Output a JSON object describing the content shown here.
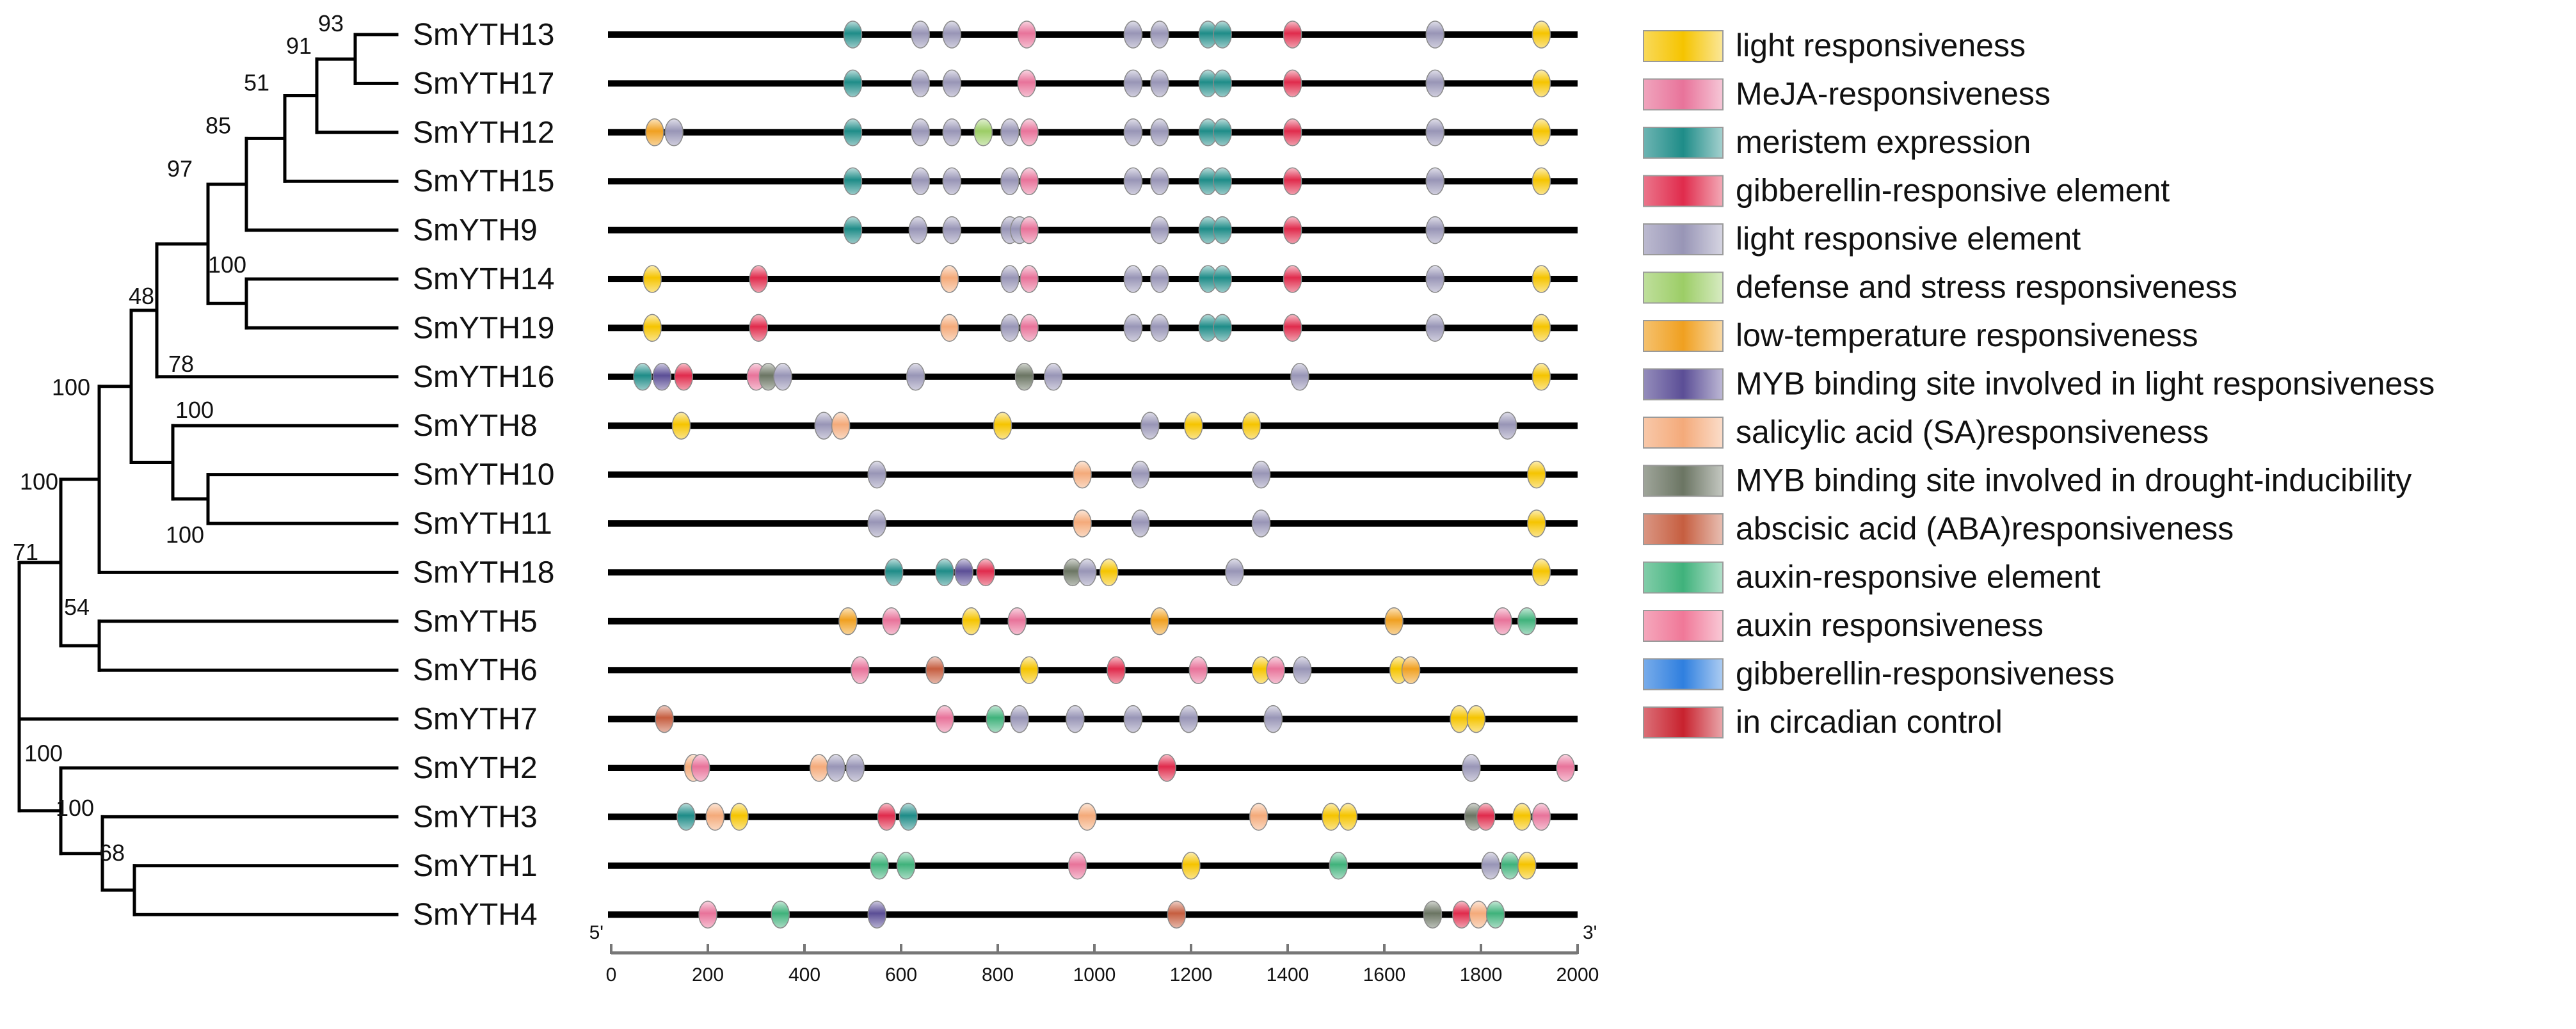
{
  "categories": {
    "light": {
      "label": "light responsiveness",
      "color": "#F5C400"
    },
    "meja": {
      "label": "MeJA-responsiveness",
      "color": "#E8739A"
    },
    "meristem": {
      "label": "meristem expression",
      "color": "#1E8C88"
    },
    "gibberellin_element": {
      "label": "gibberellin-responsive element",
      "color": "#E02B4C"
    },
    "light_element": {
      "label": "light responsive element",
      "color": "#9895B6"
    },
    "defense": {
      "label": "defense and stress responsiveness",
      "color": "#9CCD66"
    },
    "low_temp": {
      "label": "low-temperature responsiveness",
      "color": "#F0A020"
    },
    "myb_light": {
      "label": "MYB binding site involved in light responsiveness",
      "color": "#5B4E96"
    },
    "salicylic": {
      "label": "salicylic acid (SA)responsiveness",
      "color": "#F4AA7A"
    },
    "myb_drought": {
      "label": "MYB binding site involved in drought-inducibility",
      "color": "#6B7563"
    },
    "abscisic": {
      "label": "abscisic acid (ABA)responsiveness",
      "color": "#C65E40"
    },
    "auxin_element": {
      "label": "auxin-responsive element",
      "color": "#3FB27B"
    },
    "auxin": {
      "label": "auxin responsiveness",
      "color": "#F07898"
    },
    "gibberellin": {
      "label": "gibberellin-responsiveness",
      "color": "#2F7FDF"
    },
    "circadian": {
      "label": "in circadian control",
      "color": "#C8222E"
    }
  },
  "legend_order": [
    "light",
    "meja",
    "meristem",
    "gibberellin_element",
    "light_element",
    "defense",
    "low_temp",
    "myb_light",
    "salicylic",
    "myb_drought",
    "abscisic",
    "auxin_element",
    "auxin",
    "gibberellin",
    "circadian"
  ],
  "axis": {
    "min": 0,
    "max": 2000,
    "ticks": [
      "0",
      "200",
      "400",
      "600",
      "800",
      "1000",
      "1200",
      "1400",
      "1600",
      "1800",
      "2000"
    ],
    "tick_values": [
      0,
      200,
      400,
      600,
      800,
      1000,
      1200,
      1400,
      1600,
      1800,
      2000
    ],
    "start_label": "5'",
    "end_label": "3'"
  },
  "tree": {
    "leaves": [
      "SmYTH13",
      "SmYTH17",
      "SmYTH12",
      "SmYTH15",
      "SmYTH9",
      "SmYTH14",
      "SmYTH19",
      "SmYTH16",
      "SmYTH8",
      "SmYTH10",
      "SmYTH11",
      "SmYTH18",
      "SmYTH5",
      "SmYTH6",
      "SmYTH7",
      "SmYTH2",
      "SmYTH3",
      "SmYTH1",
      "SmYTH4"
    ],
    "bootstrap": [
      "93",
      "91",
      "51",
      "85",
      "97",
      "100",
      "48",
      "78",
      "100",
      "100",
      "100",
      "100",
      "71",
      "54",
      "100",
      "100",
      "68"
    ]
  },
  "genes": [
    {
      "name": "SmYTH13",
      "motifs": [
        [
          500,
          "meristem"
        ],
        [
          640,
          "light_element"
        ],
        [
          705,
          "light_element"
        ],
        [
          860,
          "meja"
        ],
        [
          1080,
          "light_element"
        ],
        [
          1135,
          "light_element"
        ],
        [
          1235,
          "meristem"
        ],
        [
          1265,
          "meristem"
        ],
        [
          1410,
          "gibberellin_element"
        ],
        [
          1705,
          "light_element"
        ],
        [
          1925,
          "light"
        ]
      ]
    },
    {
      "name": "SmYTH17",
      "motifs": [
        [
          500,
          "meristem"
        ],
        [
          640,
          "light_element"
        ],
        [
          705,
          "light_element"
        ],
        [
          860,
          "meja"
        ],
        [
          1080,
          "light_element"
        ],
        [
          1135,
          "light_element"
        ],
        [
          1235,
          "meristem"
        ],
        [
          1265,
          "meristem"
        ],
        [
          1410,
          "gibberellin_element"
        ],
        [
          1705,
          "light_element"
        ],
        [
          1925,
          "light"
        ]
      ]
    },
    {
      "name": "SmYTH12",
      "motifs": [
        [
          90,
          "low_temp"
        ],
        [
          130,
          "light_element"
        ],
        [
          500,
          "meristem"
        ],
        [
          640,
          "light_element"
        ],
        [
          705,
          "light_element"
        ],
        [
          770,
          "defense"
        ],
        [
          825,
          "light_element"
        ],
        [
          865,
          "meja"
        ],
        [
          1080,
          "light_element"
        ],
        [
          1135,
          "light_element"
        ],
        [
          1235,
          "meristem"
        ],
        [
          1265,
          "meristem"
        ],
        [
          1410,
          "gibberellin_element"
        ],
        [
          1705,
          "light_element"
        ],
        [
          1925,
          "light"
        ]
      ]
    },
    {
      "name": "SmYTH15",
      "motifs": [
        [
          500,
          "meristem"
        ],
        [
          640,
          "light_element"
        ],
        [
          705,
          "light_element"
        ],
        [
          825,
          "light_element"
        ],
        [
          865,
          "meja"
        ],
        [
          1080,
          "light_element"
        ],
        [
          1135,
          "light_element"
        ],
        [
          1235,
          "meristem"
        ],
        [
          1265,
          "meristem"
        ],
        [
          1410,
          "gibberellin_element"
        ],
        [
          1705,
          "light_element"
        ],
        [
          1925,
          "light"
        ]
      ]
    },
    {
      "name": "SmYTH9",
      "motifs": [
        [
          500,
          "meristem"
        ],
        [
          635,
          "light_element"
        ],
        [
          705,
          "light_element"
        ],
        [
          825,
          "light_element"
        ],
        [
          845,
          "light_element"
        ],
        [
          865,
          "meja"
        ],
        [
          1135,
          "light_element"
        ],
        [
          1235,
          "meristem"
        ],
        [
          1265,
          "meristem"
        ],
        [
          1410,
          "gibberellin_element"
        ],
        [
          1705,
          "light_element"
        ]
      ]
    },
    {
      "name": "SmYTH14",
      "motifs": [
        [
          85,
          "light"
        ],
        [
          305,
          "gibberellin_element"
        ],
        [
          700,
          "salicylic"
        ],
        [
          825,
          "light_element"
        ],
        [
          865,
          "meja"
        ],
        [
          1080,
          "light_element"
        ],
        [
          1135,
          "light_element"
        ],
        [
          1235,
          "meristem"
        ],
        [
          1265,
          "meristem"
        ],
        [
          1410,
          "gibberellin_element"
        ],
        [
          1705,
          "light_element"
        ],
        [
          1925,
          "light"
        ]
      ]
    },
    {
      "name": "SmYTH19",
      "motifs": [
        [
          85,
          "light"
        ],
        [
          305,
          "gibberellin_element"
        ],
        [
          700,
          "salicylic"
        ],
        [
          825,
          "light_element"
        ],
        [
          865,
          "meja"
        ],
        [
          1080,
          "light_element"
        ],
        [
          1135,
          "light_element"
        ],
        [
          1235,
          "meristem"
        ],
        [
          1265,
          "meristem"
        ],
        [
          1410,
          "gibberellin_element"
        ],
        [
          1705,
          "light_element"
        ],
        [
          1925,
          "light"
        ]
      ]
    },
    {
      "name": "SmYTH16",
      "motifs": [
        [
          65,
          "meristem"
        ],
        [
          105,
          "myb_light"
        ],
        [
          150,
          "gibberellin_element"
        ],
        [
          300,
          "meja"
        ],
        [
          325,
          "myb_drought"
        ],
        [
          355,
          "light_element"
        ],
        [
          630,
          "light_element"
        ],
        [
          855,
          "myb_drought"
        ],
        [
          915,
          "light_element"
        ],
        [
          1425,
          "light_element"
        ],
        [
          1925,
          "light"
        ]
      ]
    },
    {
      "name": "SmYTH8",
      "motifs": [
        [
          145,
          "light"
        ],
        [
          440,
          "light_element"
        ],
        [
          475,
          "salicylic"
        ],
        [
          810,
          "light"
        ],
        [
          1115,
          "light_element"
        ],
        [
          1205,
          "light"
        ],
        [
          1325,
          "light"
        ],
        [
          1855,
          "light_element"
        ]
      ]
    },
    {
      "name": "SmYTH10",
      "motifs": [
        [
          550,
          "light_element"
        ],
        [
          975,
          "salicylic"
        ],
        [
          1095,
          "light_element"
        ],
        [
          1345,
          "light_element"
        ],
        [
          1915,
          "light"
        ]
      ]
    },
    {
      "name": "SmYTH11",
      "motifs": [
        [
          550,
          "light_element"
        ],
        [
          975,
          "salicylic"
        ],
        [
          1095,
          "light_element"
        ],
        [
          1345,
          "light_element"
        ],
        [
          1915,
          "light"
        ]
      ]
    },
    {
      "name": "SmYTH18",
      "motifs": [
        [
          585,
          "meristem"
        ],
        [
          690,
          "meristem"
        ],
        [
          730,
          "myb_light"
        ],
        [
          775,
          "gibberellin_element"
        ],
        [
          955,
          "myb_drought"
        ],
        [
          985,
          "light_element"
        ],
        [
          1030,
          "light"
        ],
        [
          1290,
          "light_element"
        ],
        [
          1925,
          "light"
        ]
      ]
    },
    {
      "name": "SmYTH5",
      "motifs": [
        [
          490,
          "low_temp"
        ],
        [
          580,
          "meja"
        ],
        [
          745,
          "light"
        ],
        [
          840,
          "meja"
        ],
        [
          1135,
          "low_temp"
        ],
        [
          1620,
          "low_temp"
        ],
        [
          1845,
          "meja"
        ],
        [
          1895,
          "auxin_element"
        ]
      ]
    },
    {
      "name": "SmYTH6",
      "motifs": [
        [
          515,
          "meja"
        ],
        [
          670,
          "abscisic"
        ],
        [
          865,
          "light"
        ],
        [
          1045,
          "gibberellin_element"
        ],
        [
          1215,
          "meja"
        ],
        [
          1345,
          "light"
        ],
        [
          1375,
          "meja"
        ],
        [
          1430,
          "light_element"
        ],
        [
          1630,
          "light"
        ],
        [
          1655,
          "low_temp"
        ]
      ]
    },
    {
      "name": "SmYTH7",
      "motifs": [
        [
          110,
          "abscisic"
        ],
        [
          690,
          "meja"
        ],
        [
          795,
          "auxin_element"
        ],
        [
          845,
          "light_element"
        ],
        [
          960,
          "light_element"
        ],
        [
          1080,
          "light_element"
        ],
        [
          1195,
          "light_element"
        ],
        [
          1370,
          "light_element"
        ],
        [
          1755,
          "light"
        ],
        [
          1790,
          "light"
        ]
      ]
    },
    {
      "name": "SmYTH2",
      "motifs": [
        [
          170,
          "salicylic"
        ],
        [
          185,
          "meja"
        ],
        [
          430,
          "salicylic"
        ],
        [
          465,
          "light_element"
        ],
        [
          505,
          "light_element"
        ],
        [
          1150,
          "gibberellin_element"
        ],
        [
          1780,
          "light_element"
        ],
        [
          1975,
          "meja"
        ]
      ]
    },
    {
      "name": "SmYTH3",
      "motifs": [
        [
          155,
          "meristem"
        ],
        [
          215,
          "salicylic"
        ],
        [
          265,
          "light"
        ],
        [
          570,
          "gibberellin_element"
        ],
        [
          615,
          "meristem"
        ],
        [
          985,
          "salicylic"
        ],
        [
          1340,
          "salicylic"
        ],
        [
          1490,
          "light"
        ],
        [
          1525,
          "light"
        ],
        [
          1785,
          "myb_drought"
        ],
        [
          1810,
          "gibberellin_element"
        ],
        [
          1885,
          "light"
        ],
        [
          1925,
          "meja"
        ]
      ]
    },
    {
      "name": "SmYTH1",
      "motifs": [
        [
          555,
          "auxin_element"
        ],
        [
          610,
          "auxin_element"
        ],
        [
          965,
          "meja"
        ],
        [
          1200,
          "light"
        ],
        [
          1505,
          "auxin_element"
        ],
        [
          1820,
          "light_element"
        ],
        [
          1860,
          "auxin_element"
        ],
        [
          1895,
          "light"
        ]
      ]
    },
    {
      "name": "SmYTH4",
      "motifs": [
        [
          200,
          "meja"
        ],
        [
          350,
          "auxin_element"
        ],
        [
          550,
          "myb_light"
        ],
        [
          1170,
          "abscisic"
        ],
        [
          1700,
          "myb_drought"
        ],
        [
          1760,
          "gibberellin_element"
        ],
        [
          1795,
          "salicylic"
        ],
        [
          1830,
          "auxin_element"
        ]
      ]
    }
  ]
}
